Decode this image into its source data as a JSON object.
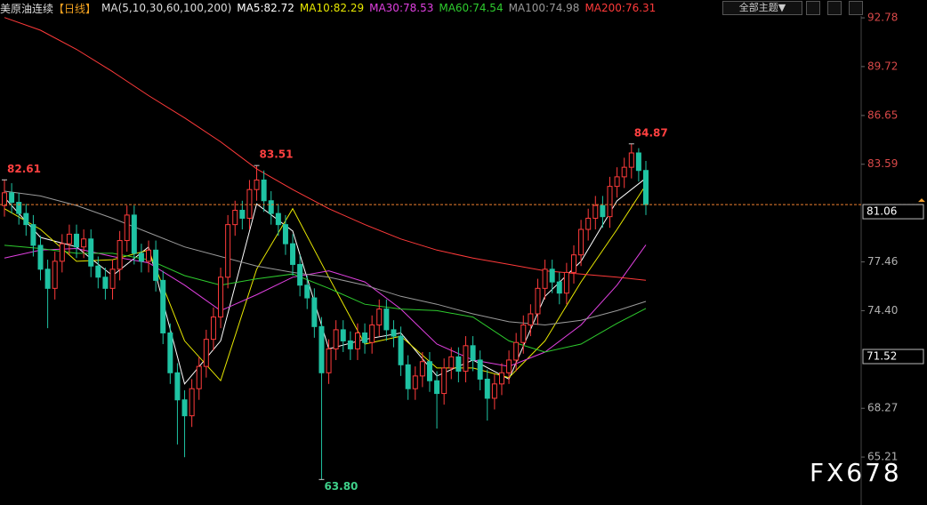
{
  "chart_data": {
    "type": "candlestick",
    "title": "美原油连续",
    "period": "【日线】",
    "ma_label": "MA(5,10,30,60,100,200)",
    "button": "全部主题▼",
    "watermark": "FX678",
    "up_color": "#ff3b3b",
    "down_color": "#1fc3a3",
    "open": [
      81.0,
      81.8,
      81.2,
      80.5,
      79.8,
      78.5,
      77.0,
      75.8,
      77.5,
      78.6,
      79.2,
      78.4,
      78.9,
      77.2,
      76.5,
      75.8,
      77.0,
      78.8,
      80.4,
      78.0,
      77.5,
      78.2,
      76.3,
      73.0,
      70.5,
      68.8,
      67.8,
      69.5,
      70.9,
      72.6,
      74.0,
      76.5,
      79.8,
      80.7,
      80.2,
      82.0,
      82.6,
      81.3,
      80.5,
      79.8,
      78.6,
      77.3,
      76.0,
      75.2,
      73.4,
      70.5,
      72.0,
      73.2,
      72.5,
      72.0,
      73.0,
      72.4,
      73.5,
      74.5,
      73.2,
      72.8,
      71.0,
      69.5,
      70.3,
      71.2,
      70.0,
      69.2,
      70.8,
      71.5,
      70.6,
      72.2,
      71.3,
      70.1,
      68.9,
      69.8,
      70.5,
      71.3,
      72.4,
      73.5,
      74.2,
      75.8,
      77.0,
      76.2,
      75.5,
      76.8,
      77.9,
      79.5,
      80.2,
      81.0,
      80.3,
      82.2,
      82.8,
      83.4,
      84.3,
      83.2
    ],
    "high": [
      82.61,
      82.4,
      81.8,
      81.1,
      80.4,
      79.1,
      77.6,
      78.1,
      79.2,
      79.8,
      79.8,
      79.5,
      79.5,
      77.8,
      77.1,
      77.6,
      79.4,
      81.0,
      81.0,
      78.6,
      78.8,
      78.8,
      76.9,
      73.6,
      71.1,
      69.4,
      70.1,
      71.5,
      73.2,
      74.6,
      77.1,
      80.4,
      81.3,
      81.3,
      82.6,
      83.51,
      83.2,
      81.9,
      81.1,
      80.4,
      79.2,
      77.9,
      76.6,
      75.8,
      74.0,
      72.6,
      73.8,
      73.8,
      73.1,
      73.6,
      73.6,
      74.1,
      75.1,
      75.1,
      73.8,
      73.4,
      71.6,
      70.9,
      71.8,
      71.8,
      70.6,
      71.4,
      72.1,
      72.1,
      72.8,
      72.8,
      71.9,
      70.7,
      70.4,
      71.1,
      71.9,
      73.0,
      74.1,
      74.8,
      76.4,
      77.6,
      77.6,
      76.8,
      77.4,
      78.5,
      80.1,
      80.8,
      81.6,
      81.6,
      82.8,
      83.4,
      84.0,
      84.87,
      84.6,
      83.8
    ],
    "low": [
      80.3,
      80.5,
      79.8,
      79.1,
      77.8,
      76.3,
      73.3,
      75.1,
      76.8,
      77.9,
      77.7,
      77.7,
      76.5,
      75.8,
      75.1,
      75.1,
      76.3,
      78.1,
      77.3,
      76.8,
      76.8,
      75.6,
      72.3,
      69.8,
      66.0,
      65.2,
      67.1,
      68.8,
      70.2,
      71.9,
      73.3,
      75.8,
      79.1,
      79.5,
      79.5,
      81.3,
      80.6,
      79.8,
      79.1,
      77.9,
      76.6,
      75.3,
      74.5,
      72.7,
      63.8,
      69.8,
      71.3,
      71.8,
      71.3,
      71.3,
      71.7,
      71.7,
      72.8,
      72.5,
      72.1,
      70.3,
      68.8,
      68.8,
      69.6,
      69.3,
      67.0,
      68.5,
      70.1,
      69.9,
      69.9,
      70.6,
      69.4,
      67.5,
      68.2,
      69.1,
      69.8,
      70.6,
      71.7,
      72.8,
      73.5,
      75.1,
      75.5,
      74.8,
      74.8,
      76.1,
      77.2,
      78.8,
      79.5,
      79.6,
      79.6,
      81.5,
      82.1,
      82.7,
      82.5,
      80.4
    ],
    "close": [
      81.8,
      81.2,
      80.5,
      79.8,
      78.5,
      77.0,
      75.8,
      77.5,
      78.6,
      79.2,
      78.4,
      78.9,
      77.2,
      76.5,
      75.8,
      77.0,
      78.8,
      80.4,
      78.0,
      77.5,
      78.2,
      76.3,
      73.0,
      70.5,
      68.8,
      67.8,
      69.5,
      70.9,
      72.6,
      74.0,
      76.5,
      79.8,
      80.7,
      80.2,
      82.0,
      82.6,
      81.3,
      80.5,
      79.8,
      78.6,
      77.3,
      76.0,
      75.2,
      73.4,
      70.5,
      72.0,
      73.2,
      72.5,
      72.0,
      73.0,
      72.4,
      73.5,
      74.5,
      73.2,
      72.8,
      71.0,
      69.5,
      70.3,
      71.2,
      70.0,
      69.2,
      70.8,
      71.5,
      70.6,
      72.2,
      71.3,
      70.1,
      68.9,
      69.8,
      70.5,
      71.3,
      72.4,
      73.5,
      74.2,
      75.8,
      77.0,
      76.2,
      75.5,
      76.8,
      77.9,
      79.5,
      80.2,
      81.0,
      80.3,
      82.2,
      82.8,
      83.4,
      84.3,
      83.2,
      81.06
    ],
    "series": [
      {
        "name": "MA5:82.72",
        "color": "#ffffff",
        "x": [
          0,
          5,
          10,
          15,
          20,
          25,
          30,
          35,
          40,
          45,
          50,
          55,
          60,
          65,
          70,
          75,
          80,
          85,
          89
        ],
        "values": [
          81.5,
          79.0,
          78.4,
          76.6,
          78.4,
          69.8,
          72.5,
          81.1,
          79.4,
          72.0,
          72.6,
          73.0,
          70.3,
          71.3,
          70.1,
          75.3,
          77.5,
          81.3,
          82.72
        ]
      },
      {
        "name": "MA10:82.29",
        "color": "#e8e800",
        "x": [
          0,
          5,
          10,
          15,
          20,
          25,
          30,
          35,
          40,
          45,
          50,
          55,
          60,
          65,
          70,
          75,
          80,
          85,
          89
        ],
        "values": [
          80.8,
          79.5,
          77.5,
          77.6,
          78.2,
          72.5,
          70.0,
          77.0,
          80.8,
          76.5,
          72.3,
          72.8,
          70.8,
          70.8,
          70.2,
          72.5,
          76.2,
          79.5,
          82.29
        ]
      },
      {
        "name": "MA30:78.53",
        "color": "#e040e0",
        "x": [
          0,
          5,
          10,
          15,
          20,
          25,
          30,
          35,
          40,
          45,
          50,
          55,
          60,
          65,
          70,
          75,
          80,
          85,
          89
        ],
        "values": [
          77.7,
          78.2,
          78.3,
          77.8,
          77.4,
          76.0,
          74.4,
          75.4,
          76.5,
          76.9,
          76.2,
          74.5,
          72.3,
          71.3,
          70.9,
          71.8,
          73.5,
          76.0,
          78.53
        ]
      },
      {
        "name": "MA60:74.54",
        "color": "#2ecc2e",
        "x": [
          0,
          5,
          10,
          15,
          20,
          25,
          30,
          35,
          40,
          45,
          50,
          55,
          60,
          65,
          70,
          75,
          80,
          85,
          89
        ],
        "values": [
          78.5,
          78.3,
          78.0,
          78.0,
          77.6,
          76.6,
          76.0,
          76.4,
          76.7,
          75.8,
          74.8,
          74.5,
          74.4,
          74.0,
          72.5,
          71.8,
          72.3,
          73.6,
          74.54
        ]
      },
      {
        "name": "MA100:74.98",
        "color": "#9a9a9a",
        "x": [
          0,
          5,
          10,
          15,
          20,
          25,
          30,
          35,
          40,
          45,
          50,
          55,
          60,
          65,
          70,
          75,
          80,
          85,
          89
        ],
        "values": [
          81.9,
          81.6,
          81.0,
          80.2,
          79.3,
          78.4,
          77.8,
          77.2,
          76.8,
          76.5,
          76.0,
          75.3,
          74.8,
          74.2,
          73.7,
          73.5,
          73.8,
          74.4,
          74.98
        ]
      },
      {
        "name": "MA200:76.31",
        "color": "#ff3a3a",
        "x": [
          0,
          5,
          10,
          15,
          20,
          25,
          30,
          35,
          40,
          45,
          50,
          55,
          60,
          65,
          70,
          75,
          80,
          85,
          89
        ],
        "values": [
          92.8,
          92.0,
          90.8,
          89.4,
          87.9,
          86.5,
          85.0,
          83.3,
          82.0,
          80.8,
          79.8,
          78.9,
          78.2,
          77.7,
          77.3,
          76.9,
          76.7,
          76.5,
          76.31
        ]
      }
    ],
    "annotations": [
      {
        "x": 0,
        "value": 82.61
      },
      {
        "x": 35,
        "value": 83.51
      },
      {
        "x": 87,
        "value": 84.87
      },
      {
        "x": 44,
        "value": 63.8,
        "label": "63.80"
      }
    ],
    "price_line": 81.06,
    "price_marker": 71.52,
    "ylim": [
      62.2,
      93.9
    ],
    "yticks": [
      92.78,
      89.72,
      86.65,
      83.59,
      77.46,
      {
        "value": 74.4,
        "label": "74.40"
      },
      68.27,
      65.21
    ],
    "grid": false
  }
}
